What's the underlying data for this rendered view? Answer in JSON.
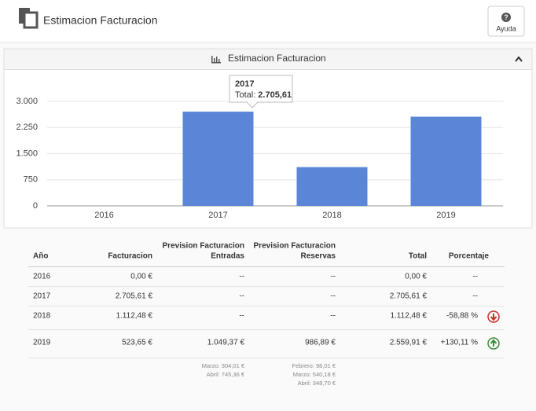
{
  "header": {
    "title": "Estimacion Facturacion",
    "help": "Ayuda"
  },
  "panel": {
    "title": "Estimacion Facturacion"
  },
  "chart_data": {
    "type": "bar",
    "categories": [
      "2016",
      "2017",
      "2018",
      "2019"
    ],
    "values": [
      0,
      2705.61,
      1112.48,
      2559.91
    ],
    "color": "#5b86d8",
    "ylim": [
      0,
      3000
    ],
    "yticks": [
      0,
      750,
      {
        "value": 1500,
        "label": "1.500"
      },
      {
        "value": 2250,
        "label": "2.250"
      },
      {
        "value": 3000,
        "label": "3.000"
      }
    ],
    "grid": true,
    "tooltip": {
      "title": "2017",
      "label": "Total:",
      "value": "2.705,61"
    }
  },
  "table": {
    "columns": [
      [
        "Año"
      ],
      [
        "Facturacion"
      ],
      [
        "Prevision Facturacion",
        "Entradas"
      ],
      [
        "Prevision Facturacion",
        "Reservas"
      ],
      [
        "Total"
      ],
      [
        "Porcentaje"
      ]
    ],
    "rows": [
      [
        "2016",
        "0,00 €",
        "--",
        "--",
        "0,00 €",
        "--"
      ],
      [
        "2017",
        "2.705,61 €",
        "--",
        "--",
        "2.705,61 €",
        "--"
      ],
      [
        "2018",
        "1.112,48 €",
        "--",
        "--",
        "1.112,48 €",
        "-58,88 %"
      ],
      [
        "2019",
        "523,65 €",
        "1.049,37 €",
        "986,89 €",
        "2.559,91 €",
        "+130,11 %"
      ]
    ],
    "notes": {
      "entradas": [
        "Marzo: 304,01 €",
        "Abril: 745,36 €"
      ],
      "reservas": [
        "Febrero: 98,01 €",
        "Marzo: 540,18 €",
        "Abril: 348,70 €"
      ]
    }
  }
}
